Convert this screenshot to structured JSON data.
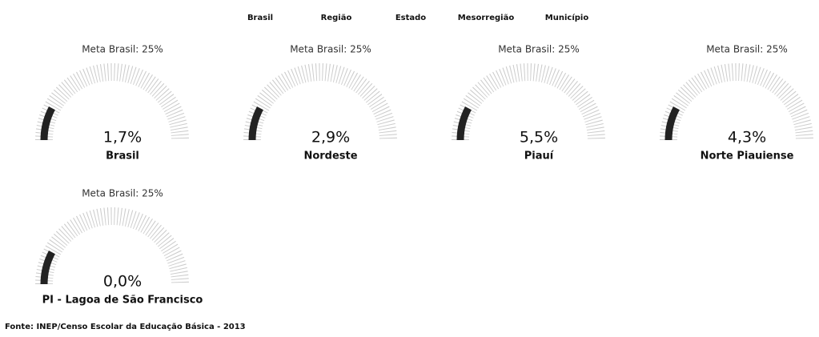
{
  "nav": [
    "Brasil",
    "Região",
    "Estado",
    "Mesorregião",
    "Município"
  ],
  "gauges": [
    {
      "title": "Meta Brasil: 25%",
      "value": "1,7%",
      "name": "Brasil"
    },
    {
      "title": "Meta Brasil: 25%",
      "value": "2,9%",
      "name": "Nordeste"
    },
    {
      "title": "Meta Brasil: 25%",
      "value": "5,5%",
      "name": "Piauí"
    },
    {
      "title": "Meta Brasil: 25%",
      "value": "4,3%",
      "name": "Norte Piauiense"
    },
    {
      "title": "Meta Brasil: 25%",
      "value": "0,0%",
      "name": "PI - Lagoa de São Francisco"
    }
  ],
  "footer": "Fonte: INEP/Censo Escolar da Educação Básica - 2013"
}
